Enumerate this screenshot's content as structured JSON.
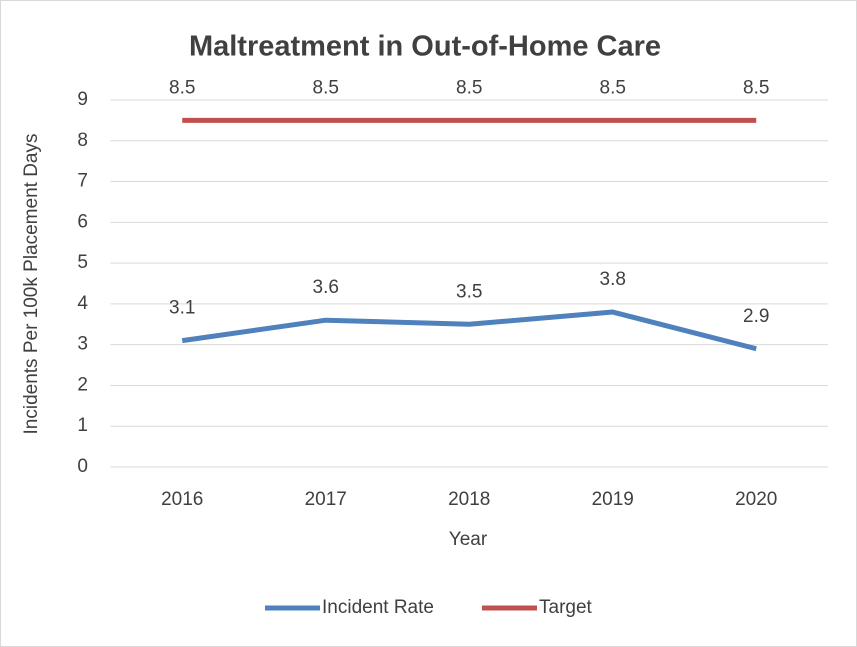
{
  "chart_data": {
    "type": "line",
    "title": "Maltreatment in Out-of-Home Care",
    "x_label": "Year",
    "y_label": "Incidents Per 100k Placement Days",
    "categories": [
      "2016",
      "2017",
      "2018",
      "2019",
      "2020"
    ],
    "series": [
      {
        "name": "Incident Rate",
        "color": "#4f81bd",
        "values": [
          3.1,
          3.6,
          3.5,
          3.8,
          2.9
        ]
      },
      {
        "name": "Target",
        "color": "#c0504d",
        "values": [
          8.5,
          8.5,
          8.5,
          8.5,
          8.5
        ]
      }
    ],
    "ylim": [
      0,
      9
    ],
    "yticks": [
      0,
      1,
      2,
      3,
      4,
      5,
      6,
      7,
      8,
      9
    ],
    "grid": true,
    "legend": "bottom"
  }
}
